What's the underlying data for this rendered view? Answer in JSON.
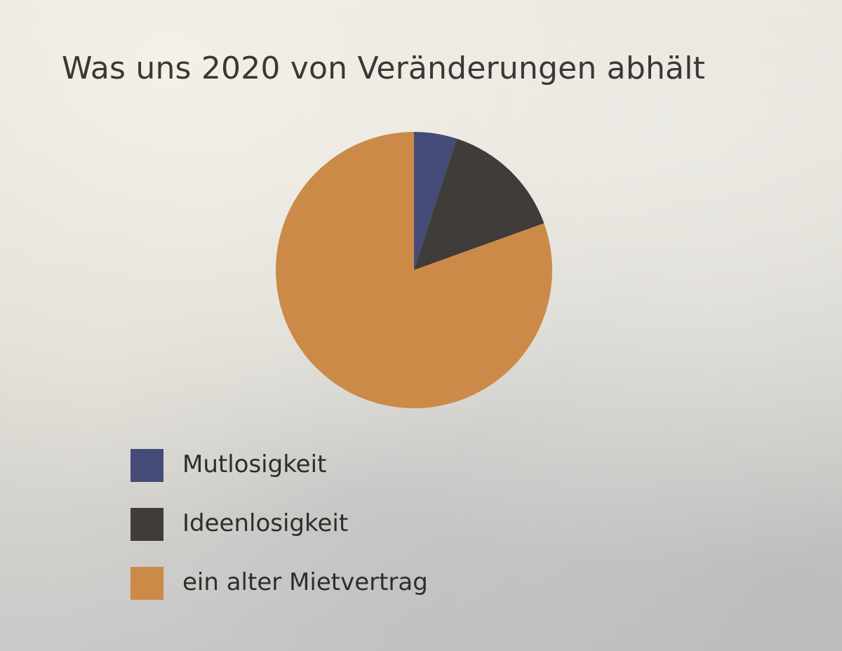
{
  "chart_data": {
    "type": "pie",
    "title": "Was uns 2020 von Veränderungen abhält",
    "start_angle_deg": 0,
    "direction": "clockwise",
    "slices": [
      {
        "label": "Mutlosigkeit",
        "value": 5,
        "color": "#454b78"
      },
      {
        "label": "Ideenlosigkeit",
        "value": 14.5,
        "color": "#3f3c39"
      },
      {
        "label": "ein alter Mietvertrag",
        "value": 80.5,
        "color": "#cc8a48"
      }
    ],
    "legend_position": "bottom-left"
  }
}
